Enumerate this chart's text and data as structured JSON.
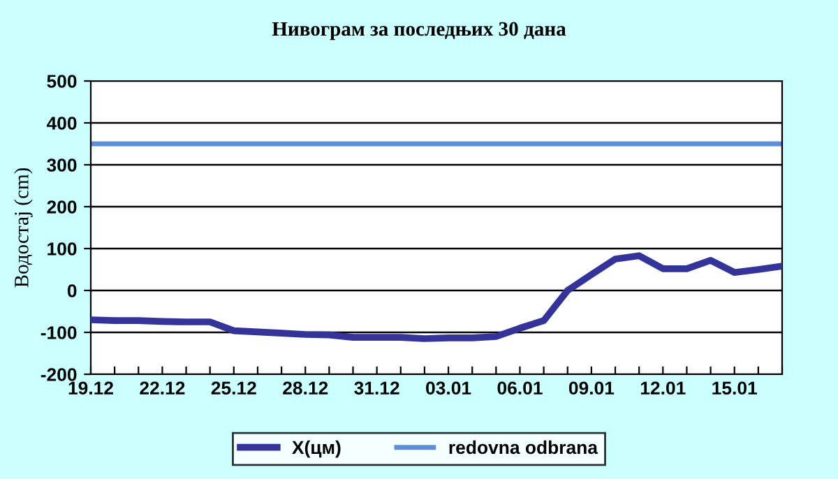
{
  "chart_data": {
    "type": "line",
    "title": "Нивограм за последњих 30 дана",
    "ylabel": "Водостај (cm)",
    "categories": [
      "19.12",
      null,
      null,
      "22.12",
      null,
      null,
      "25.12",
      null,
      null,
      "28.12",
      null,
      null,
      "31.12",
      null,
      null,
      "03.01",
      null,
      null,
      "06.01",
      null,
      null,
      "09.01",
      null,
      null,
      "12.01",
      null,
      null,
      "15.01",
      null,
      null
    ],
    "series": [
      {
        "name": "X(цм)",
        "color": "#333399",
        "values": [
          -70,
          -72,
          -72,
          -74,
          -75,
          -75,
          -96,
          -99,
          -102,
          -105,
          -106,
          -112,
          -112,
          -112,
          -115,
          -113,
          -113,
          -110,
          -90,
          -72,
          0,
          38,
          75,
          83,
          52,
          52,
          72,
          43,
          50,
          58
        ]
      }
    ],
    "ref_lines": [
      {
        "axis": "y",
        "value": 350,
        "label": "redovna odbrana",
        "color": "#5b8fd9"
      }
    ],
    "ylim": [
      -200,
      500
    ],
    "yticks": [
      -200,
      -100,
      0,
      100,
      200,
      300,
      400,
      500
    ],
    "grid": "y",
    "legend": "bottom",
    "marker": "none",
    "line_style": "solid"
  }
}
